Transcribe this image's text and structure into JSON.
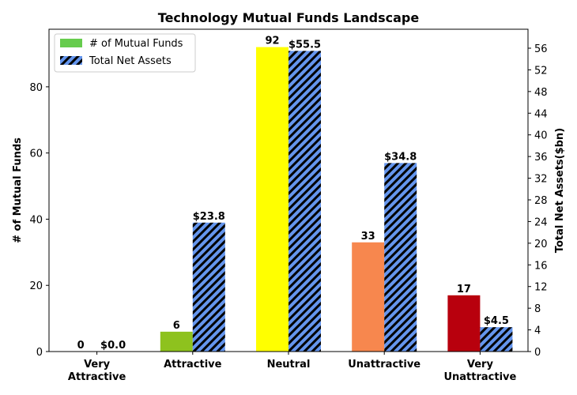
{
  "chart_data": {
    "type": "bar",
    "title": "Technology Mutual Funds Landscape",
    "categories": [
      "Very\nAttractive",
      "Attractive",
      "Neutral",
      "Unattractive",
      "Very\nUnattractive"
    ],
    "series": [
      {
        "name": "# of Mutual Funds",
        "axis": "left",
        "values": [
          0,
          6,
          92,
          33,
          17
        ],
        "labels": [
          "0",
          "6",
          "92",
          "33",
          "17"
        ],
        "colors": [
          "#1a7a1a",
          "#8ec21e",
          "#ffff00",
          "#f7874e",
          "#b8000d"
        ],
        "legend_color": "#66cc4d"
      },
      {
        "name": "Total Net Assets",
        "axis": "right",
        "values": [
          0.0,
          23.8,
          55.5,
          34.8,
          4.5
        ],
        "labels": [
          "$0.0",
          "$23.8",
          "$55.5",
          "$34.8",
          "$4.5"
        ],
        "color": "#6495ed",
        "hatch": "////"
      }
    ],
    "ylabel": "# of Mutual Funds",
    "y2label": "Total Net Assets($bn)",
    "ylim": [
      0,
      97.4
    ],
    "y2lim": [
      0,
      59.5
    ],
    "yticks": [
      0,
      20,
      40,
      60,
      80
    ],
    "y2ticks": [
      0,
      4,
      8,
      12,
      16,
      20,
      24,
      28,
      32,
      36,
      40,
      44,
      48,
      52,
      56
    ],
    "legend_position": "top-left"
  }
}
